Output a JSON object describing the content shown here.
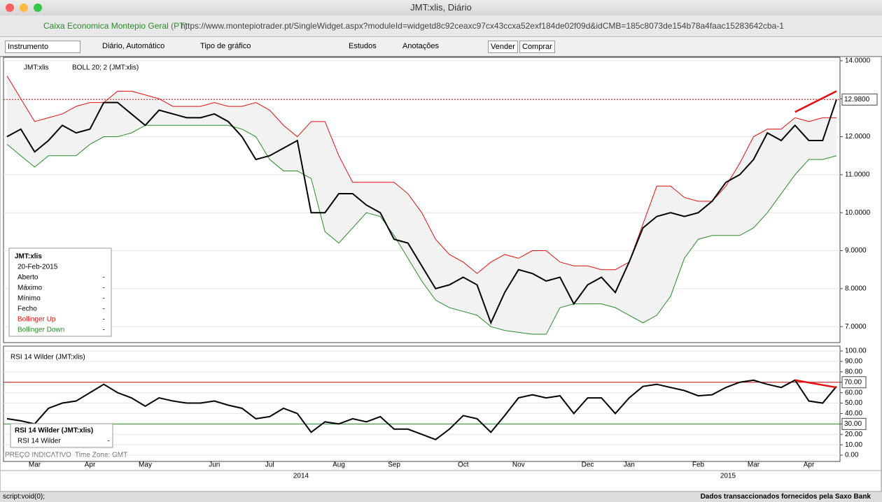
{
  "window": {
    "title": "JMT:xlis, Diário",
    "site": "Caixa Economica Montepio Geral (PT)",
    "url": "https://www.montepiotrader.pt/SingleWidget.aspx?moduleId=widgetd8c92ceaxc97cx43ccxa52exf184de02f09d&idCMB=185c8073de154b78a4faac15283642cba-1"
  },
  "toolbar": {
    "instrument": "Instrumento",
    "period": "Diário, Automático",
    "chart_type": "Tipo de gráfico",
    "studies": "Estudos",
    "annotations": "Anotações",
    "sell": "Vender",
    "buy": "Comprar"
  },
  "status": {
    "indicative": "PREÇO INDICATIVO",
    "timezone": "Time Zone: GMT",
    "link": "script:void(0);",
    "provider": "Dados transaccionados fornecidos pela Saxo Bank"
  },
  "chart_data": [
    {
      "type": "line",
      "instrument": "JMT:xlis",
      "study": "BOLL 20; 2 (JMT:xlis)",
      "categories": [
        null,
        null,
        "Mar",
        null,
        null,
        null,
        "Apr",
        null,
        null,
        null,
        "May",
        null,
        null,
        null,
        null,
        "Jun",
        null,
        null,
        null,
        "Jul",
        null,
        null,
        null,
        null,
        "Aug",
        null,
        null,
        null,
        "Sep",
        null,
        null,
        null,
        null,
        "Oct",
        null,
        null,
        null,
        "Nov",
        null,
        null,
        null,
        null,
        "Dec",
        null,
        null,
        "Jan",
        null,
        null,
        null,
        null,
        "Feb",
        null,
        null,
        null,
        "Mar",
        null,
        null,
        null,
        "Apr",
        null,
        null
      ],
      "x_years": [
        "2014",
        "2015"
      ],
      "series": [
        {
          "name": "JMT:xlis",
          "color": "#000000",
          "values": [
            12.0,
            12.2,
            11.6,
            11.9,
            12.3,
            12.1,
            12.2,
            12.9,
            12.9,
            12.6,
            12.3,
            12.7,
            12.6,
            12.5,
            12.5,
            12.6,
            12.4,
            12.0,
            11.4,
            11.5,
            11.7,
            11.9,
            10.0,
            10.0,
            10.5,
            10.5,
            10.2,
            10.0,
            9.3,
            9.2,
            8.6,
            8.0,
            8.1,
            8.3,
            8.1,
            7.1,
            7.9,
            8.5,
            8.4,
            8.2,
            8.3,
            7.6,
            8.1,
            8.3,
            7.9,
            8.7,
            9.6,
            9.9,
            10.0,
            9.9,
            10.0,
            10.3,
            10.8,
            11.0,
            11.4,
            12.1,
            11.9,
            12.3,
            11.9,
            11.9,
            12.98
          ]
        },
        {
          "name": "Bollinger Up",
          "color": "#e01010",
          "values": [
            13.6,
            13.0,
            12.4,
            12.5,
            12.6,
            12.8,
            12.9,
            12.9,
            13.2,
            13.2,
            13.1,
            13.0,
            12.8,
            12.8,
            12.8,
            12.9,
            12.8,
            12.8,
            12.9,
            12.7,
            12.3,
            12.0,
            12.4,
            12.4,
            11.5,
            10.8,
            10.8,
            10.8,
            10.8,
            10.5,
            10.0,
            9.3,
            8.9,
            8.7,
            8.4,
            8.7,
            8.9,
            8.8,
            9.0,
            9.0,
            8.7,
            8.6,
            8.6,
            8.5,
            8.5,
            8.7,
            9.7,
            10.7,
            10.7,
            10.4,
            10.3,
            10.3,
            10.7,
            11.3,
            12.0,
            12.2,
            12.2,
            12.5,
            12.4,
            12.5,
            12.5
          ]
        },
        {
          "name": "Bollinger Down",
          "color": "#2a8a2a",
          "values": [
            11.8,
            11.5,
            11.2,
            11.5,
            11.5,
            11.5,
            11.8,
            12.0,
            12.0,
            12.1,
            12.3,
            12.3,
            12.3,
            12.3,
            12.3,
            12.3,
            12.3,
            12.2,
            12.0,
            11.4,
            11.1,
            11.1,
            10.9,
            9.5,
            9.2,
            9.6,
            10.0,
            9.9,
            9.4,
            8.8,
            8.2,
            7.7,
            7.5,
            7.4,
            7.3,
            7.0,
            6.9,
            6.85,
            6.8,
            6.8,
            7.5,
            7.6,
            7.6,
            7.6,
            7.5,
            7.3,
            7.1,
            7.3,
            7.8,
            8.8,
            9.3,
            9.4,
            9.4,
            9.4,
            9.6,
            10.0,
            10.5,
            11.0,
            11.4,
            11.4,
            11.5
          ]
        }
      ],
      "last_value_label": "12.9800",
      "trend_line": [
        12.65,
        13.2
      ],
      "ylim": [
        6.58,
        14.09
      ],
      "yticks": [
        {
          "value": 7,
          "label": "7.0000"
        },
        {
          "value": 8,
          "label": "8.0000"
        },
        {
          "value": 9,
          "label": "9.0000"
        },
        {
          "value": 10,
          "label": "10.0000"
        },
        {
          "value": 11,
          "label": "11.0000"
        },
        {
          "value": 12,
          "label": "12.0000"
        },
        {
          "value": 13,
          "label": "13.0000"
        },
        {
          "value": 14,
          "label": "14.0000"
        }
      ],
      "grid": true,
      "info_box": {
        "title": "JMT:xlis",
        "date": "20-Feb-2015",
        "rows": [
          [
            "Aberto",
            "-"
          ],
          [
            "Máximo",
            "-"
          ],
          [
            "Mínimo",
            "-"
          ],
          [
            "Fecho",
            "-"
          ]
        ],
        "band_values": [
          "-",
          "-"
        ]
      }
    },
    {
      "type": "line",
      "title": "RSI 14 Wilder (JMT:xlis)",
      "series": [
        {
          "name": "RSI 14 Wilder",
          "color": "#000000",
          "values": [
            35,
            33,
            30,
            45,
            50,
            52,
            60,
            68,
            60,
            55,
            47,
            55,
            52,
            50,
            50,
            52,
            48,
            45,
            35,
            37,
            45,
            40,
            22,
            32,
            30,
            35,
            32,
            37,
            25,
            25,
            20,
            15,
            25,
            38,
            35,
            22,
            38,
            55,
            58,
            55,
            57,
            40,
            55,
            55,
            40,
            55,
            66,
            68,
            65,
            62,
            57,
            58,
            65,
            70,
            72,
            68,
            65,
            72,
            52,
            50,
            66
          ]
        }
      ],
      "info_value": "-",
      "levels": [
        {
          "value": 70,
          "label": "70.00",
          "color": "#c01010"
        },
        {
          "value": 30,
          "label": "30.00",
          "color": "#2a8a2a"
        }
      ],
      "trend_line": [
        72,
        65
      ],
      "ylim": [
        -6,
        104.7
      ],
      "yticks": [
        {
          "value": 0,
          "label": "0.00"
        },
        {
          "value": 10,
          "label": "10.00"
        },
        {
          "value": 20,
          "label": "20.00"
        },
        {
          "value": 30,
          "label": "30.00"
        },
        {
          "value": 40,
          "label": "40.00"
        },
        {
          "value": 50,
          "label": "50.00"
        },
        {
          "value": 60,
          "label": "60.00"
        },
        {
          "value": 70,
          "label": "70.00"
        },
        {
          "value": 80,
          "label": "80.00"
        },
        {
          "value": 90,
          "label": "90.00"
        },
        {
          "value": 100,
          "label": "100.00"
        }
      ],
      "grid": true
    }
  ]
}
